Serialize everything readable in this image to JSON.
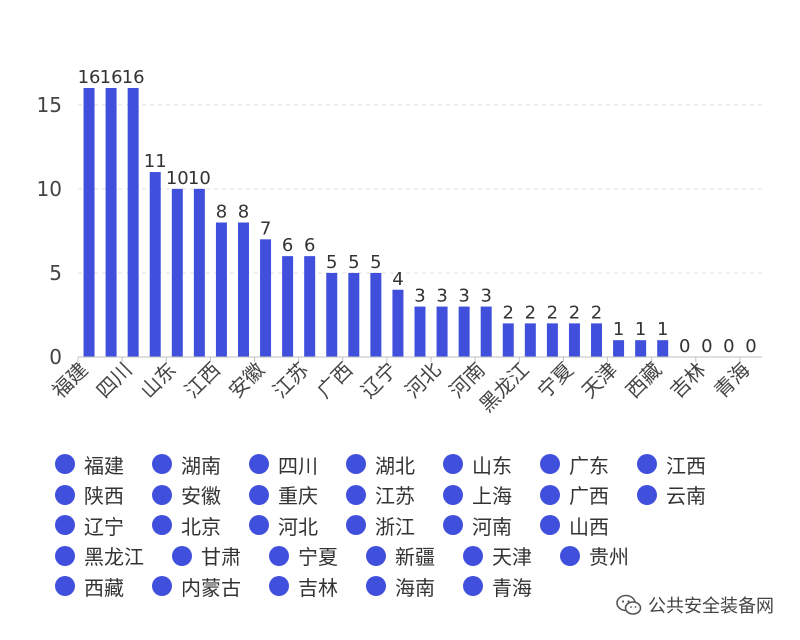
{
  "chart_data": {
    "type": "bar",
    "categories": [
      "福建",
      "湖南",
      "四川",
      "湖北",
      "山东",
      "广东",
      "江西",
      "陕西",
      "安徽",
      "重庆",
      "江苏",
      "上海",
      "广西",
      "云南",
      "辽宁",
      "北京",
      "河北",
      "浙江",
      "河南",
      "山西",
      "黑龙江",
      "甘肃",
      "宁夏",
      "新疆",
      "天津",
      "贵州",
      "西藏",
      "内蒙古",
      "吉林",
      "海南",
      "青海"
    ],
    "values": [
      16,
      16,
      16,
      11,
      10,
      10,
      8,
      8,
      7,
      6,
      6,
      5,
      5,
      5,
      4,
      3,
      3,
      3,
      3,
      2,
      2,
      2,
      2,
      2,
      1,
      1,
      1,
      0,
      0,
      0,
      0
    ],
    "x_tick_labels": [
      "福建",
      "四川",
      "山东",
      "江西",
      "安徽",
      "江苏",
      "广西",
      "辽宁",
      "河北",
      "河南",
      "黑龙江",
      "宁夏",
      "天津",
      "西藏",
      "吉林",
      "青海"
    ],
    "y_ticks": [
      0,
      5,
      10,
      15
    ],
    "ylim": [
      0,
      16
    ],
    "bar_color": "#4150dc",
    "grid": true,
    "legend_placement": "bottom",
    "title": "",
    "xlabel": "",
    "ylabel": ""
  },
  "legend": {
    "rows": [
      [
        "福建",
        "湖南",
        "四川",
        "湖北",
        "山东",
        "广东",
        "江西"
      ],
      [
        "陕西",
        "安徽",
        "重庆",
        "江苏",
        "上海",
        "广西",
        "云南"
      ],
      [
        "辽宁",
        "北京",
        "河北",
        "浙江",
        "河南",
        "山西"
      ],
      [
        "黑龙江",
        "甘肃",
        "宁夏",
        "新疆",
        "天津",
        "贵州"
      ],
      [
        "西藏",
        "内蒙古",
        "吉林",
        "海南",
        "青海"
      ]
    ]
  },
  "watermark": {
    "text": "公共安全装备网",
    "icon": "wechat-icon"
  }
}
